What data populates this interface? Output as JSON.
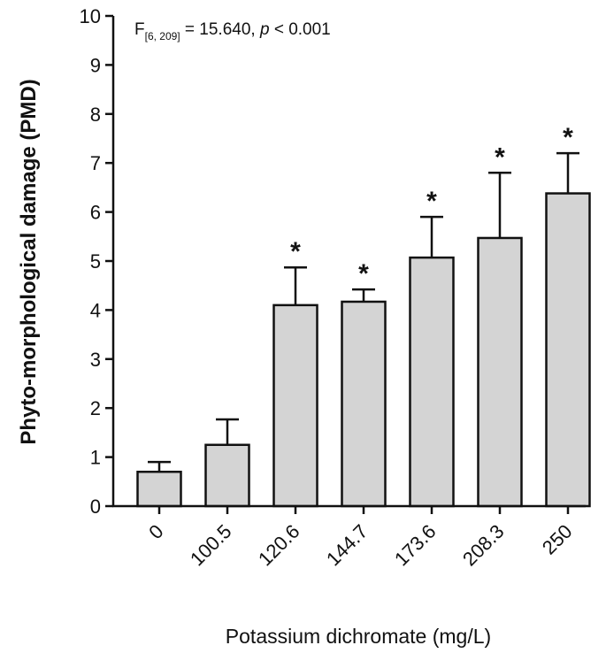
{
  "chart_data": {
    "type": "bar",
    "categories": [
      "0",
      "100.5",
      "120.6",
      "144.7",
      "173.6",
      "208.3",
      "250"
    ],
    "values": [
      0.7,
      1.25,
      4.1,
      4.17,
      5.07,
      5.47,
      6.38
    ],
    "error_upper": [
      0.9,
      1.77,
      4.87,
      4.42,
      5.9,
      6.8,
      7.2
    ],
    "significance": [
      "",
      "",
      "*",
      "*",
      "*",
      "*",
      "*"
    ],
    "xlabel": "Potassium dichromate (mg/L)",
    "ylabel": "Phyto-morphological damage (PMD)",
    "ylim": [
      0,
      10
    ],
    "yticks": [
      "0",
      "1",
      "2",
      "3",
      "4",
      "5",
      "6",
      "7",
      "8",
      "9",
      "10"
    ],
    "annotation": {
      "prefix": "F",
      "subscript": "[6, 209]",
      "middle": " = 15.640, ",
      "p_symbol": "p",
      "suffix": " < 0.001"
    },
    "bar_color": "#d4d4d4",
    "edge_color": "#111111",
    "grid": false
  }
}
